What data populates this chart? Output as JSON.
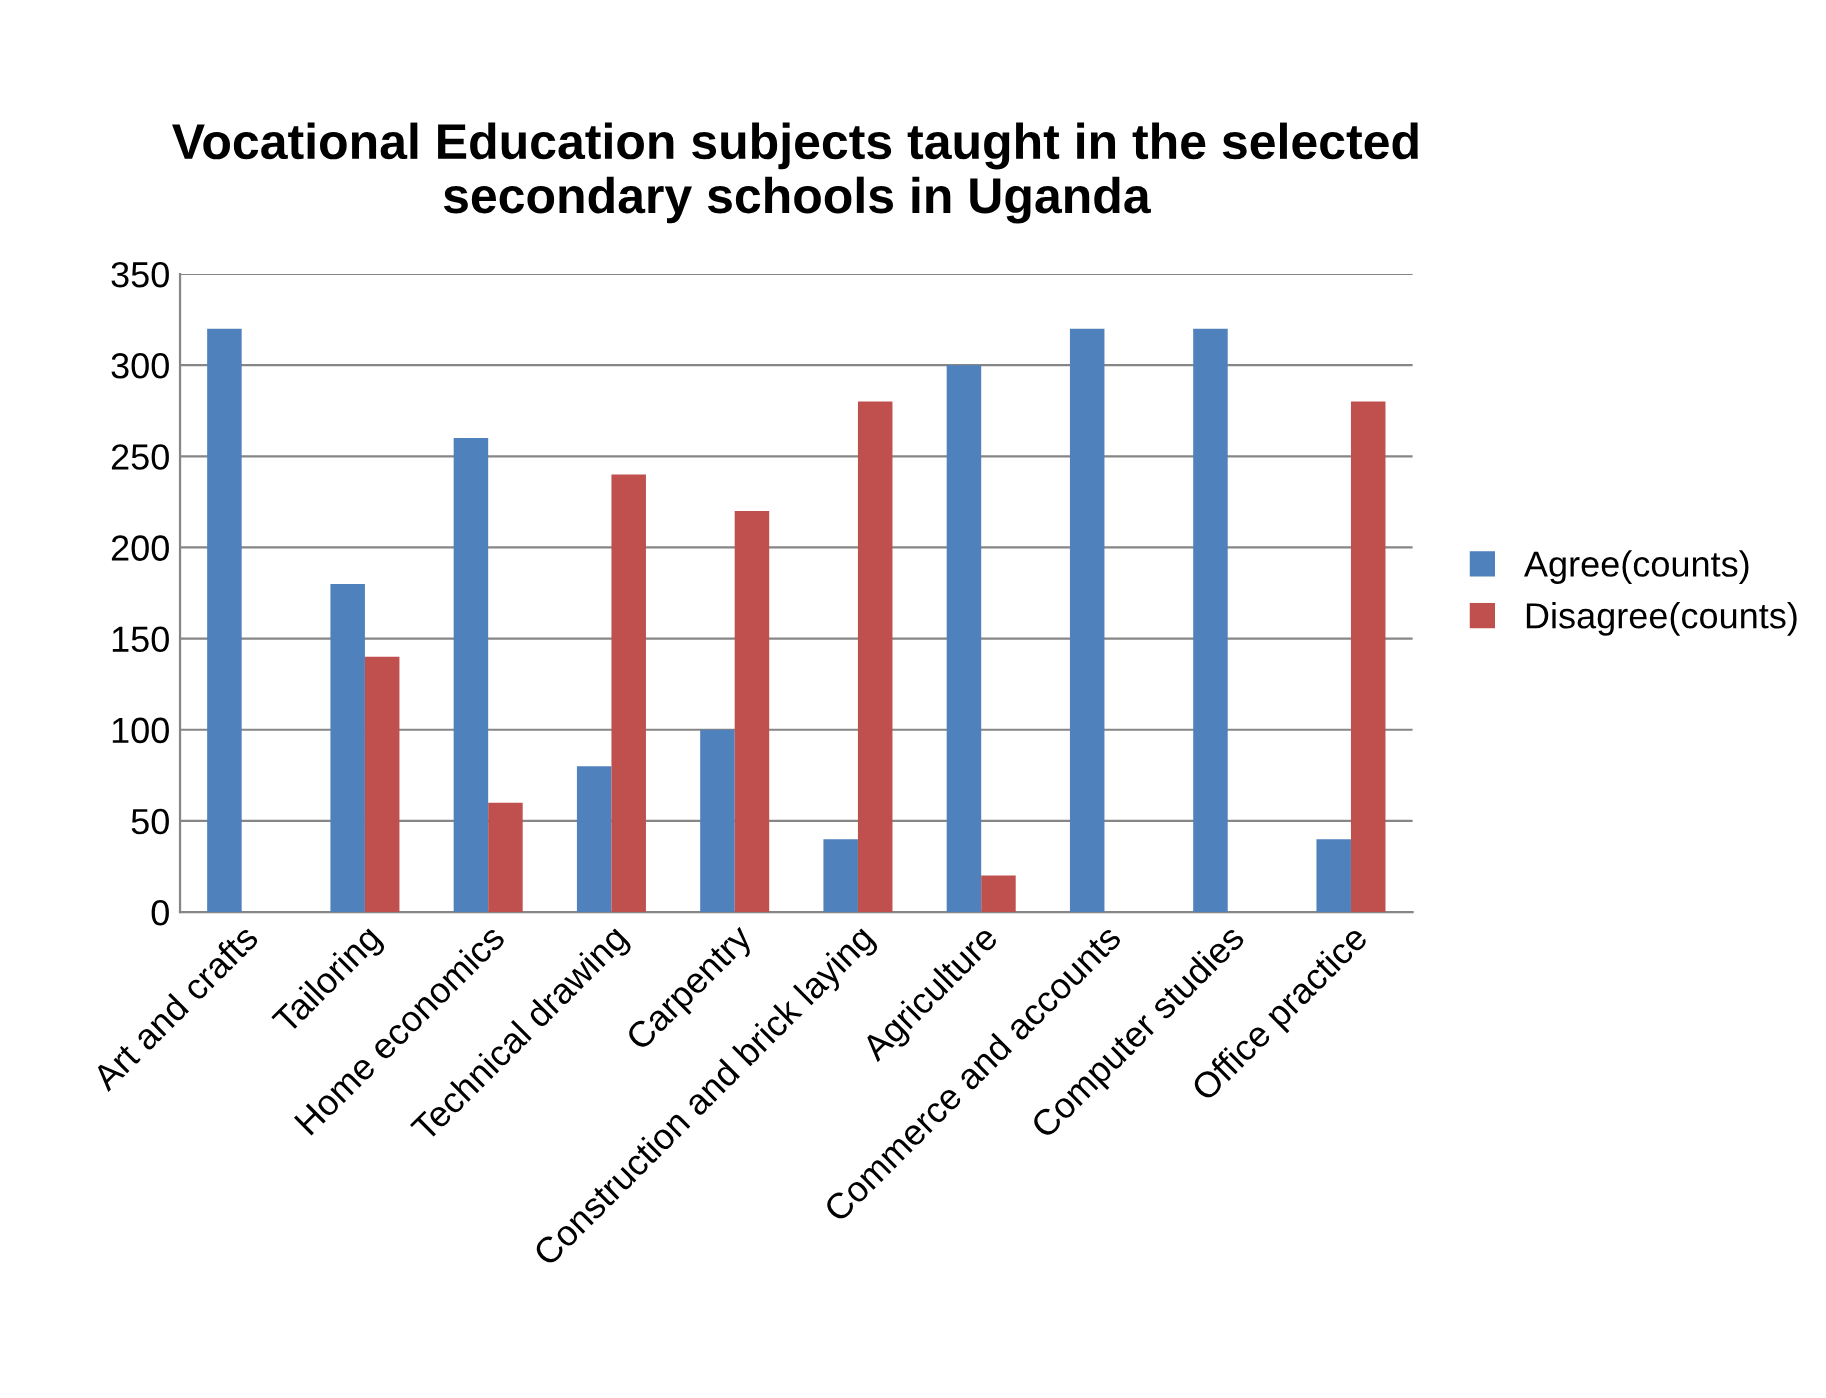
{
  "chart_data": {
    "type": "bar",
    "title": "Vocational Education subjects taught in the selected\nsecondary schools in Uganda",
    "categories": [
      "Art and crafts",
      "Tailoring",
      "Home economics",
      "Technical drawing",
      "Carpentry",
      "Construction and brick laying",
      "Agriculture",
      "Commerce and accounts",
      "Computer studies",
      "Office practice"
    ],
    "series": [
      {
        "name": "Agree(counts)",
        "color": "#4f81bd",
        "values": [
          320,
          180,
          260,
          80,
          100,
          40,
          300,
          320,
          320,
          40
        ]
      },
      {
        "name": "Disagree(counts)",
        "color": "#c0504d",
        "values": [
          0,
          140,
          60,
          240,
          220,
          280,
          20,
          0,
          0,
          280
        ]
      }
    ],
    "ylim": [
      0,
      350
    ],
    "yticks": [
      0,
      50,
      100,
      150,
      200,
      250,
      300,
      350
    ],
    "grid": "y",
    "legend": "right"
  }
}
